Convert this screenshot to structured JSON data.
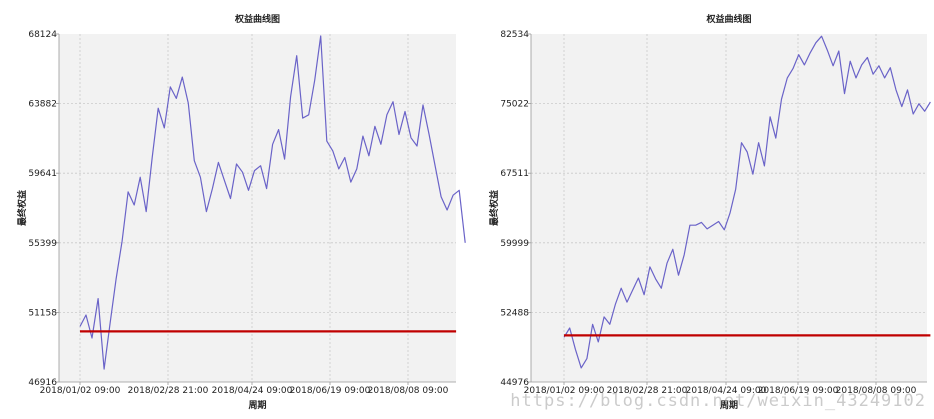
{
  "colors": {
    "equity_line": "#6a63c8",
    "baseline": "#c00000",
    "plot_bg": "#f2f2f2"
  },
  "watermark": "https://blog.csdn.net/weixin_43249102",
  "chart_data": [
    {
      "type": "line",
      "title": "权益曲线图",
      "xlabel": "周期",
      "ylabel": "最终权益",
      "x_ticks": [
        "2018/01/02 09:00",
        "2018/02/28 21:00",
        "2018/04/24 09:00",
        "2018/06/19 09:00",
        "2018/08/08 09:00"
      ],
      "y_ticks": [
        46916,
        51158,
        55399,
        59641,
        63882,
        68124
      ],
      "ylim": [
        46916,
        68124
      ],
      "xlim": [
        "2018/01/02",
        "2018/09/15"
      ],
      "grid": true,
      "series": [
        {
          "style": "equity",
          "x": [
            "2018/01/02",
            "2018/01/06",
            "2018/01/10",
            "2018/01/14",
            "2018/01/18",
            "2018/01/22",
            "2018/01/26",
            "2018/01/30",
            "2018/02/03",
            "2018/02/07",
            "2018/02/11",
            "2018/02/15",
            "2018/02/19",
            "2018/02/23",
            "2018/02/27",
            "2018/03/03",
            "2018/03/07",
            "2018/03/11",
            "2018/03/15",
            "2018/03/19",
            "2018/03/23",
            "2018/03/27",
            "2018/03/31",
            "2018/04/04",
            "2018/04/08",
            "2018/04/12",
            "2018/04/16",
            "2018/04/20",
            "2018/04/24",
            "2018/04/28",
            "2018/05/02",
            "2018/05/06",
            "2018/05/10",
            "2018/05/14",
            "2018/05/18",
            "2018/05/22",
            "2018/05/26",
            "2018/05/30",
            "2018/06/03",
            "2018/06/07",
            "2018/06/11",
            "2018/06/15",
            "2018/06/19",
            "2018/06/23",
            "2018/06/27",
            "2018/07/01",
            "2018/07/05",
            "2018/07/09",
            "2018/07/13",
            "2018/07/17",
            "2018/07/21",
            "2018/07/25",
            "2018/07/29",
            "2018/08/02",
            "2018/08/06",
            "2018/08/10",
            "2018/08/14",
            "2018/08/18",
            "2018/08/22",
            "2018/08/26",
            "2018/08/30",
            "2018/09/03",
            "2018/09/07",
            "2018/09/11",
            "2018/09/15"
          ],
          "values": [
            50300,
            51000,
            49600,
            52000,
            47700,
            50500,
            53200,
            55500,
            58500,
            57700,
            59400,
            57300,
            60600,
            63600,
            62400,
            64900,
            64200,
            65500,
            63900,
            60400,
            59400,
            57300,
            58700,
            60300,
            59200,
            58100,
            60200,
            59700,
            58600,
            59800,
            60100,
            58700,
            61400,
            62300,
            60500,
            64300,
            66800,
            63000,
            63200,
            65300,
            68000,
            61600,
            61000,
            59900,
            60600,
            59100,
            59900,
            61900,
            60700,
            62500,
            61400,
            63200,
            64000,
            62000,
            63400,
            61800,
            61300,
            63800,
            62000,
            60100,
            58200,
            57400,
            58300,
            58600,
            55400
          ]
        },
        {
          "style": "baseline",
          "x": [
            "2018/01/02",
            "2018/09/09"
          ],
          "values": [
            50000,
            50000
          ]
        }
      ]
    },
    {
      "type": "line",
      "title": "权益曲线图",
      "xlabel": "周期",
      "ylabel": "最终权益",
      "x_ticks": [
        "2018/01/02 09:00",
        "2018/02/28 21:00",
        "2018/04/24 09:00",
        "2018/06/19 09:00",
        "2018/08/08 09:00"
      ],
      "y_ticks": [
        44976,
        52488,
        59999,
        67511,
        75022,
        82534
      ],
      "ylim": [
        44976,
        82534
      ],
      "xlim": [
        "2018/01/02",
        "2018/09/15"
      ],
      "grid": true,
      "series": [
        {
          "style": "equity",
          "x": [
            "2018/01/02",
            "2018/01/06",
            "2018/01/10",
            "2018/01/14",
            "2018/01/18",
            "2018/01/22",
            "2018/01/26",
            "2018/01/30",
            "2018/02/03",
            "2018/02/07",
            "2018/02/11",
            "2018/02/15",
            "2018/02/19",
            "2018/02/23",
            "2018/02/27",
            "2018/03/03",
            "2018/03/07",
            "2018/03/11",
            "2018/03/15",
            "2018/03/19",
            "2018/03/23",
            "2018/03/27",
            "2018/03/31",
            "2018/04/04",
            "2018/04/08",
            "2018/04/12",
            "2018/04/16",
            "2018/04/20",
            "2018/04/24",
            "2018/04/28",
            "2018/05/02",
            "2018/05/06",
            "2018/05/10",
            "2018/05/14",
            "2018/05/18",
            "2018/05/22",
            "2018/05/26",
            "2018/05/30",
            "2018/06/03",
            "2018/06/07",
            "2018/06/11",
            "2018/06/15",
            "2018/06/19",
            "2018/06/23",
            "2018/06/27",
            "2018/07/01",
            "2018/07/05",
            "2018/07/09",
            "2018/07/13",
            "2018/07/17",
            "2018/07/21",
            "2018/07/25",
            "2018/07/29",
            "2018/08/02",
            "2018/08/06",
            "2018/08/10",
            "2018/08/14",
            "2018/08/18",
            "2018/08/22",
            "2018/08/26",
            "2018/08/30",
            "2018/09/03",
            "2018/09/07",
            "2018/09/11",
            "2018/09/15"
          ],
          "values": [
            49800,
            50800,
            48500,
            46500,
            47500,
            51200,
            49300,
            52000,
            51200,
            53400,
            55100,
            53600,
            54900,
            56200,
            54400,
            57400,
            56100,
            55100,
            57800,
            59300,
            56500,
            58700,
            61900,
            61900,
            62200,
            61500,
            61900,
            62300,
            61400,
            63200,
            65800,
            70800,
            69800,
            67400,
            70800,
            68300,
            73600,
            71300,
            75500,
            77800,
            78800,
            80300,
            79200,
            80500,
            81600,
            82300,
            80800,
            79100,
            80700,
            76100,
            79600,
            77800,
            79200,
            80000,
            78200,
            79100,
            77800,
            78900,
            76500,
            74700,
            76500,
            73900,
            75000,
            74200,
            75200
          ]
        },
        {
          "style": "baseline",
          "x": [
            "2018/01/02",
            "2018/09/15"
          ],
          "values": [
            50000,
            50000
          ]
        }
      ]
    }
  ]
}
